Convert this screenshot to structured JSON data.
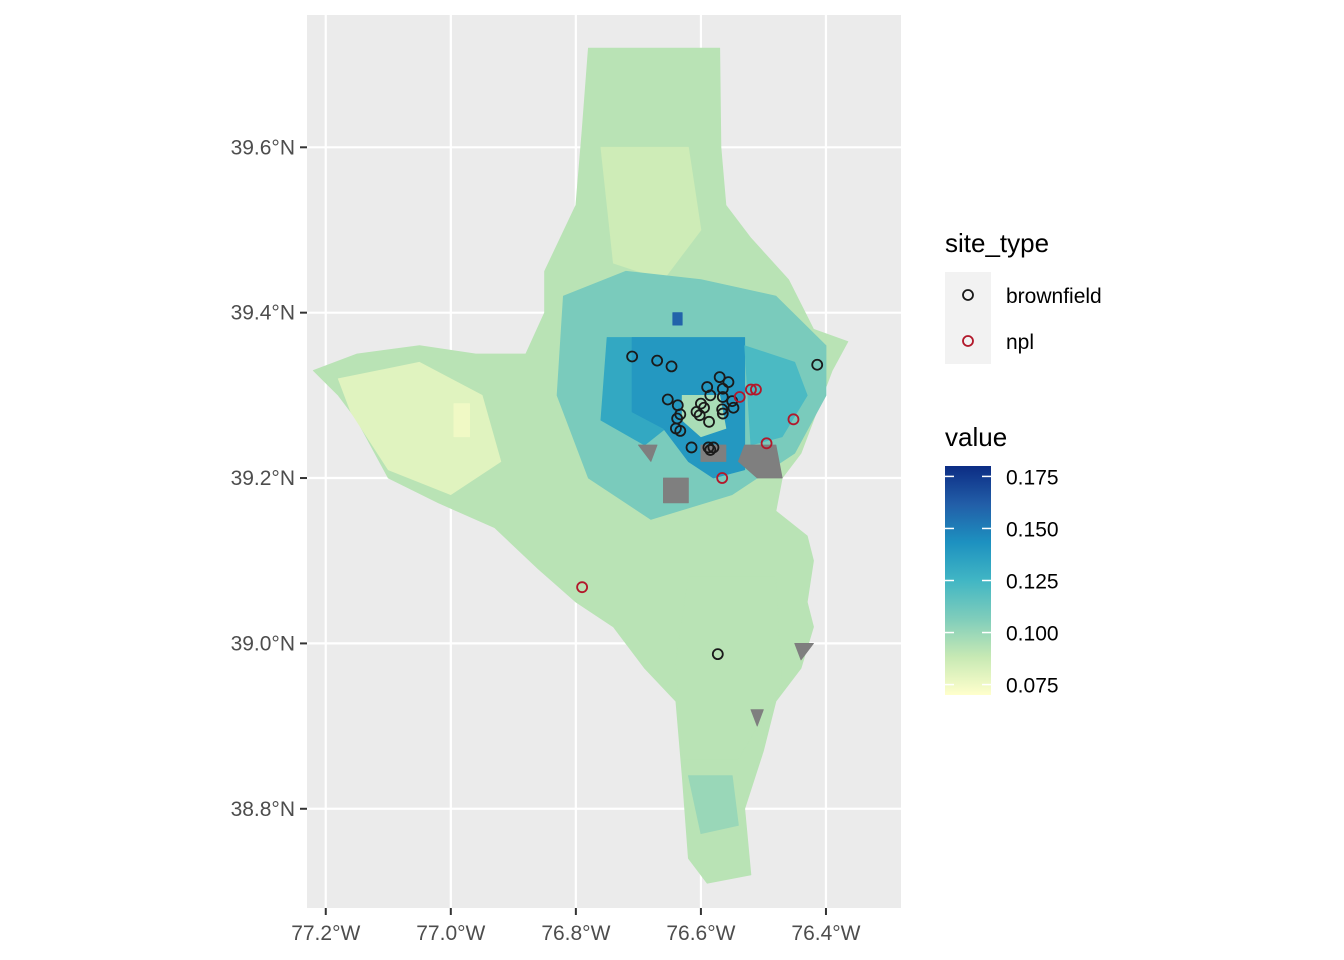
{
  "chart_data": {
    "type": "map",
    "x_axis": {
      "range": [
        -77.23,
        -76.28
      ],
      "ticks": [
        {
          "value": -77.2,
          "label": "77.2°W"
        },
        {
          "value": -77.0,
          "label": "77.0°W"
        },
        {
          "value": -76.8,
          "label": "76.8°W"
        },
        {
          "value": -76.6,
          "label": "76.6°W"
        },
        {
          "value": -76.4,
          "label": "76.4°W"
        }
      ]
    },
    "y_axis": {
      "range": [
        38.68,
        39.76
      ],
      "ticks": [
        {
          "value": 38.8,
          "label": "38.8°N"
        },
        {
          "value": 39.0,
          "label": "39.0°N"
        },
        {
          "value": 39.2,
          "label": "39.2°N"
        },
        {
          "value": 39.4,
          "label": "39.4°N"
        },
        {
          "value": 39.6,
          "label": "39.6°N"
        }
      ]
    },
    "panel_color": "#ebebeb",
    "grid_color": "#ffffff",
    "na_color": "#7f7f7f",
    "fill_legend": {
      "title": "value",
      "limits": [
        0.07,
        0.18
      ],
      "breaks": [
        {
          "value": 0.175,
          "label": "0.175"
        },
        {
          "value": 0.15,
          "label": "0.150"
        },
        {
          "value": 0.125,
          "label": "0.125"
        },
        {
          "value": 0.1,
          "label": "0.100"
        },
        {
          "value": 0.075,
          "label": "0.075"
        }
      ],
      "palette": [
        "#ffffcc",
        "#c7e9b4",
        "#7fcdbb",
        "#41b6c4",
        "#1d91c0",
        "#225ea8",
        "#0c2c84"
      ]
    },
    "shape_legend": {
      "title": "site_type",
      "entries": [
        {
          "label": "brownfield",
          "color": "#1a1a1a"
        },
        {
          "label": "npl",
          "color": "#b2182b"
        }
      ]
    },
    "regions": [
      {
        "name": "county",
        "value": 0.092,
        "outline": [
          [
            -76.78,
            39.72
          ],
          [
            -76.57,
            39.72
          ],
          [
            -76.568,
            39.6
          ],
          [
            -76.56,
            39.53
          ],
          [
            -76.52,
            39.49
          ],
          [
            -76.46,
            39.44
          ],
          [
            -76.42,
            39.38
          ],
          [
            -76.365,
            39.365
          ],
          [
            -76.39,
            39.33
          ],
          [
            -76.42,
            39.27
          ],
          [
            -76.44,
            39.23
          ],
          [
            -76.47,
            39.2
          ],
          [
            -76.48,
            39.16
          ],
          [
            -76.43,
            39.13
          ],
          [
            -76.42,
            39.1
          ],
          [
            -76.43,
            39.05
          ],
          [
            -76.42,
            39.02
          ],
          [
            -76.44,
            38.97
          ],
          [
            -76.48,
            38.93
          ],
          [
            -76.5,
            38.87
          ],
          [
            -76.53,
            38.8
          ],
          [
            -76.52,
            38.72
          ],
          [
            -76.59,
            38.71
          ],
          [
            -76.62,
            38.74
          ],
          [
            -76.63,
            38.84
          ],
          [
            -76.64,
            38.93
          ],
          [
            -76.69,
            38.97
          ],
          [
            -76.74,
            39.02
          ],
          [
            -76.8,
            39.05
          ],
          [
            -76.83,
            39.07
          ],
          [
            -76.86,
            39.09
          ],
          [
            -76.93,
            39.14
          ],
          [
            -77.02,
            39.17
          ],
          [
            -77.1,
            39.2
          ],
          [
            -77.15,
            39.27
          ],
          [
            -77.18,
            39.3
          ],
          [
            -77.22,
            39.33
          ],
          [
            -77.15,
            39.35
          ],
          [
            -77.05,
            39.36
          ],
          [
            -76.96,
            39.35
          ],
          [
            -76.88,
            39.35
          ],
          [
            -76.85,
            39.4
          ],
          [
            -76.85,
            39.45
          ],
          [
            -76.8,
            39.53
          ],
          [
            -76.79,
            39.62
          ],
          [
            -76.78,
            39.72
          ]
        ]
      },
      {
        "name": "north-light",
        "value": 0.086,
        "outline": [
          [
            -76.76,
            39.6
          ],
          [
            -76.62,
            39.6
          ],
          [
            -76.6,
            39.5
          ],
          [
            -76.66,
            39.44
          ],
          [
            -76.74,
            39.46
          ]
        ]
      },
      {
        "name": "west-light",
        "value": 0.08,
        "outline": [
          [
            -77.18,
            39.32
          ],
          [
            -77.05,
            39.34
          ],
          [
            -76.95,
            39.3
          ],
          [
            -76.92,
            39.22
          ],
          [
            -77.0,
            39.18
          ],
          [
            -77.1,
            39.21
          ],
          [
            -77.16,
            39.28
          ]
        ]
      },
      {
        "name": "west-pale",
        "value": 0.075,
        "outline": [
          [
            -76.995,
            39.29
          ],
          [
            -76.97,
            39.29
          ],
          [
            -76.97,
            39.25
          ],
          [
            -76.995,
            39.25
          ]
        ]
      },
      {
        "name": "south-light",
        "value": 0.092,
        "outline": [
          [
            -76.62,
            39.08
          ],
          [
            -76.48,
            39.08
          ],
          [
            -76.47,
            38.95
          ],
          [
            -76.54,
            38.86
          ],
          [
            -76.63,
            38.86
          ],
          [
            -76.64,
            38.98
          ]
        ]
      },
      {
        "name": "far-south",
        "value": 0.1,
        "outline": [
          [
            -76.62,
            38.84
          ],
          [
            -76.55,
            38.84
          ],
          [
            -76.54,
            38.78
          ],
          [
            -76.6,
            38.77
          ]
        ]
      },
      {
        "name": "north-ring",
        "value": 0.108,
        "outline": [
          [
            -76.82,
            39.42
          ],
          [
            -76.72,
            39.45
          ],
          [
            -76.6,
            39.44
          ],
          [
            -76.48,
            39.42
          ],
          [
            -76.4,
            39.36
          ],
          [
            -76.4,
            39.3
          ],
          [
            -76.45,
            39.23
          ],
          [
            -76.55,
            39.18
          ],
          [
            -76.68,
            39.15
          ],
          [
            -76.78,
            39.2
          ],
          [
            -76.83,
            39.3
          ]
        ]
      },
      {
        "name": "west-inner",
        "value": 0.132,
        "outline": [
          [
            -76.75,
            39.37
          ],
          [
            -76.65,
            39.37
          ],
          [
            -76.64,
            39.27
          ],
          [
            -76.69,
            39.24
          ],
          [
            -76.76,
            39.27
          ]
        ]
      },
      {
        "name": "city-core",
        "value": 0.14,
        "outline": [
          [
            -76.71,
            39.37
          ],
          [
            -76.53,
            39.37
          ],
          [
            -76.53,
            39.21
          ],
          [
            -76.58,
            39.2
          ],
          [
            -76.62,
            39.22
          ],
          [
            -76.66,
            39.26
          ],
          [
            -76.71,
            39.28
          ]
        ]
      },
      {
        "name": "east-inner",
        "value": 0.122,
        "outline": [
          [
            -76.53,
            39.36
          ],
          [
            -76.45,
            39.34
          ],
          [
            -76.43,
            39.3
          ],
          [
            -76.47,
            39.25
          ],
          [
            -76.52,
            39.24
          ]
        ]
      },
      {
        "name": "downtown",
        "value": 0.096,
        "outline": [
          [
            -76.63,
            39.3
          ],
          [
            -76.57,
            39.3
          ],
          [
            -76.56,
            39.26
          ],
          [
            -76.6,
            39.25
          ],
          [
            -76.63,
            39.27
          ]
        ]
      },
      {
        "name": "north-spot",
        "value": 0.16,
        "outline": [
          [
            -76.645,
            39.4
          ],
          [
            -76.63,
            39.4
          ],
          [
            -76.63,
            39.385
          ],
          [
            -76.645,
            39.385
          ]
        ]
      },
      {
        "name": "na-harbor-south",
        "value": null,
        "outline": [
          [
            -76.66,
            39.2
          ],
          [
            -76.62,
            39.2
          ],
          [
            -76.62,
            39.17
          ],
          [
            -76.66,
            39.17
          ]
        ]
      },
      {
        "name": "na-harbor-east",
        "value": null,
        "outline": [
          [
            -76.53,
            39.24
          ],
          [
            -76.48,
            39.24
          ],
          [
            -76.47,
            39.2
          ],
          [
            -76.51,
            39.2
          ],
          [
            -76.54,
            39.22
          ]
        ]
      },
      {
        "name": "na-port",
        "value": null,
        "outline": [
          [
            -76.6,
            39.24
          ],
          [
            -76.56,
            39.24
          ],
          [
            -76.56,
            39.22
          ],
          [
            -76.6,
            39.22
          ]
        ]
      },
      {
        "name": "na-west",
        "value": null,
        "outline": [
          [
            -76.7,
            39.24
          ],
          [
            -76.67,
            39.24
          ],
          [
            -76.68,
            39.22
          ]
        ]
      },
      {
        "name": "na-shore-1",
        "value": null,
        "outline": [
          [
            -76.45,
            39.0
          ],
          [
            -76.42,
            39.0
          ],
          [
            -76.44,
            38.98
          ]
        ]
      },
      {
        "name": "na-shore-2",
        "value": null,
        "outline": [
          [
            -76.52,
            38.92
          ],
          [
            -76.5,
            38.92
          ],
          [
            -76.51,
            38.9
          ]
        ]
      }
    ],
    "points": [
      {
        "site_type": "brownfield",
        "lon": -76.71,
        "lat": 39.347
      },
      {
        "site_type": "brownfield",
        "lon": -76.67,
        "lat": 39.342
      },
      {
        "site_type": "brownfield",
        "lon": -76.647,
        "lat": 39.335
      },
      {
        "site_type": "brownfield",
        "lon": -76.653,
        "lat": 39.295
      },
      {
        "site_type": "brownfield",
        "lon": -76.637,
        "lat": 39.288
      },
      {
        "site_type": "brownfield",
        "lon": -76.633,
        "lat": 39.277
      },
      {
        "site_type": "brownfield",
        "lon": -76.638,
        "lat": 39.272
      },
      {
        "site_type": "brownfield",
        "lon": -76.64,
        "lat": 39.26
      },
      {
        "site_type": "brownfield",
        "lon": -76.633,
        "lat": 39.257
      },
      {
        "site_type": "brownfield",
        "lon": -76.615,
        "lat": 39.237
      },
      {
        "site_type": "brownfield",
        "lon": -76.6,
        "lat": 39.29
      },
      {
        "site_type": "brownfield",
        "lon": -76.595,
        "lat": 39.285
      },
      {
        "site_type": "brownfield",
        "lon": -76.59,
        "lat": 39.31
      },
      {
        "site_type": "brownfield",
        "lon": -76.585,
        "lat": 39.3
      },
      {
        "site_type": "brownfield",
        "lon": -76.57,
        "lat": 39.322
      },
      {
        "site_type": "brownfield",
        "lon": -76.565,
        "lat": 39.308
      },
      {
        "site_type": "brownfield",
        "lon": -76.556,
        "lat": 39.316
      },
      {
        "site_type": "brownfield",
        "lon": -76.565,
        "lat": 39.298
      },
      {
        "site_type": "brownfield",
        "lon": -76.55,
        "lat": 39.293
      },
      {
        "site_type": "brownfield",
        "lon": -76.548,
        "lat": 39.285
      },
      {
        "site_type": "brownfield",
        "lon": -76.566,
        "lat": 39.283
      },
      {
        "site_type": "brownfield",
        "lon": -76.565,
        "lat": 39.278
      },
      {
        "site_type": "brownfield",
        "lon": -76.607,
        "lat": 39.28
      },
      {
        "site_type": "brownfield",
        "lon": -76.602,
        "lat": 39.276
      },
      {
        "site_type": "brownfield",
        "lon": -76.587,
        "lat": 39.268
      },
      {
        "site_type": "brownfield",
        "lon": -76.588,
        "lat": 39.237
      },
      {
        "site_type": "brownfield",
        "lon": -76.585,
        "lat": 39.234
      },
      {
        "site_type": "brownfield",
        "lon": -76.58,
        "lat": 39.237
      },
      {
        "site_type": "brownfield",
        "lon": -76.414,
        "lat": 39.337
      },
      {
        "site_type": "brownfield",
        "lon": -76.573,
        "lat": 38.987
      },
      {
        "site_type": "npl",
        "lon": -76.52,
        "lat": 39.307
      },
      {
        "site_type": "npl",
        "lon": -76.512,
        "lat": 39.307
      },
      {
        "site_type": "npl",
        "lon": -76.538,
        "lat": 39.298
      },
      {
        "site_type": "npl",
        "lon": -76.452,
        "lat": 39.271
      },
      {
        "site_type": "npl",
        "lon": -76.495,
        "lat": 39.242
      },
      {
        "site_type": "npl",
        "lon": -76.566,
        "lat": 39.2
      },
      {
        "site_type": "npl",
        "lon": -76.79,
        "lat": 39.068
      }
    ]
  }
}
